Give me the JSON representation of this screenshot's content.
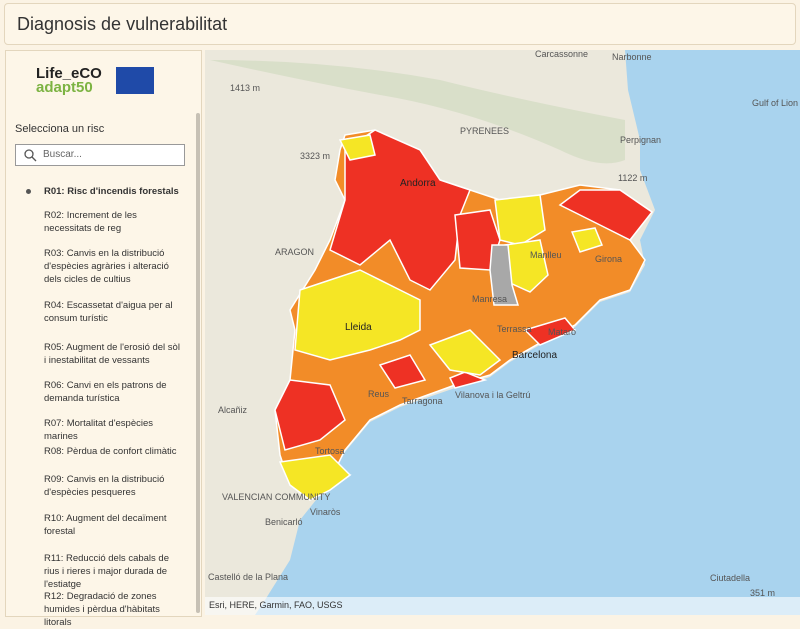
{
  "header": {
    "title": "Diagnosis de vulnerabilitat"
  },
  "logo": {
    "line1": "Life_eCO",
    "line2": "adapt50"
  },
  "sidebar": {
    "heading": "Selecciona un risc",
    "search_placeholder": "Buscar...",
    "items": [
      "R01: Risc d'incendis forestals",
      "R02: Increment de les necessitats de reg",
      "R03: Canvis en la distribució d'espècies agràries i alteració dels cicles de cultius",
      "R04: Escassetat d'aigua per al consum turístic",
      "R05: Augment de l'erosió del sòl i inestabilitat de vessants",
      "R06: Canvi en els patrons de demanda turística",
      "R07: Mortalitat d'espècies marines",
      "R08: Pèrdua de confort climàtic",
      "R09: Canvis en la distribució d'espècies pesqueres",
      "R10: Augment del decaïment forestal",
      "R11: Reducció dels cabals de rius i rieres i major durada de l'estiatge",
      "R12: Degradació de zones humides i pèrdua d'hàbitats litorals"
    ]
  },
  "map": {
    "labels": [
      "Carcassonne",
      "Narbonne",
      "Gulf of Lion",
      "Perpignan",
      "PYRENEES",
      "Andorra",
      "ARAGON",
      "Lleida",
      "Manlleu",
      "Girona",
      "Manresa",
      "Terrassa",
      "Mataró",
      "Barcelona",
      "Reus",
      "Tarragona",
      "Vilanova i la Geltrú",
      "Tortosa",
      "Alcañiz",
      "VALENCIAN COMMUNITY",
      "Vinaròs",
      "Benicarló",
      "Castelló de la Plana",
      "Ciutadella",
      "1413 m",
      "3323 m",
      "1122 m",
      "351 m"
    ],
    "attribution": "Esri, HERE, Garmin, FAO, USGS"
  }
}
